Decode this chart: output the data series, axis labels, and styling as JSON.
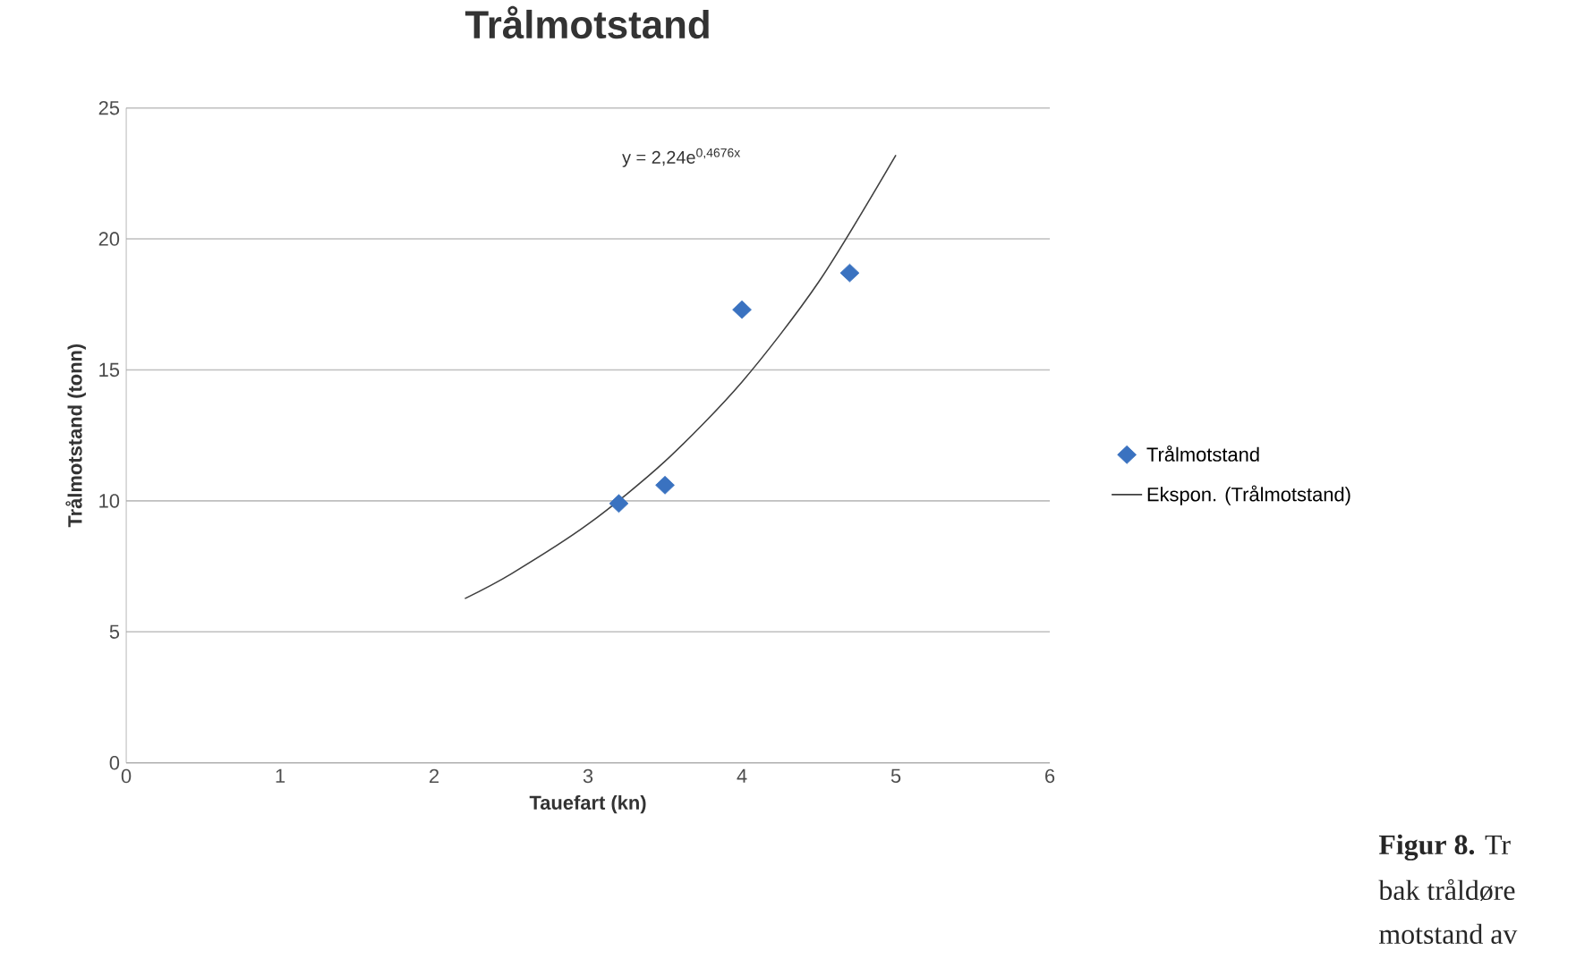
{
  "chart_data": {
    "type": "scatter",
    "title": "Trålmotstand",
    "xlabel": "Tauefart (kn)",
    "ylabel": "Trålmotstand (tonn)",
    "xlim": [
      0,
      6
    ],
    "xticks": [
      0,
      1,
      2,
      3,
      4,
      5,
      6
    ],
    "ylim": [
      0,
      25
    ],
    "yticks": [
      0,
      5,
      10,
      15,
      20,
      25
    ],
    "grid": "y",
    "legend": "right",
    "series": [
      {
        "name": "Trålmotstand",
        "color": "#3a72c0",
        "marker": "diamond",
        "x": [
          3.2,
          3.5,
          4.0,
          4.7
        ],
        "values": [
          9.9,
          10.6,
          17.3,
          18.7
        ]
      },
      {
        "name": "Ekspon. (Trålmotstand)",
        "type": "line",
        "marker": "none",
        "color": "#404040",
        "x": [
          2.2,
          2.5,
          3.0,
          3.5,
          4.0,
          4.5,
          5.0
        ],
        "values": [
          6.27,
          7.21,
          9.11,
          11.51,
          14.54,
          18.37,
          23.2
        ]
      }
    ],
    "annotations": [
      "y = 2,24e$^{0,4676x}$",
      "**Figur 8.** Tr",
      "bak tråldøre",
      "motstand av"
    ]
  }
}
